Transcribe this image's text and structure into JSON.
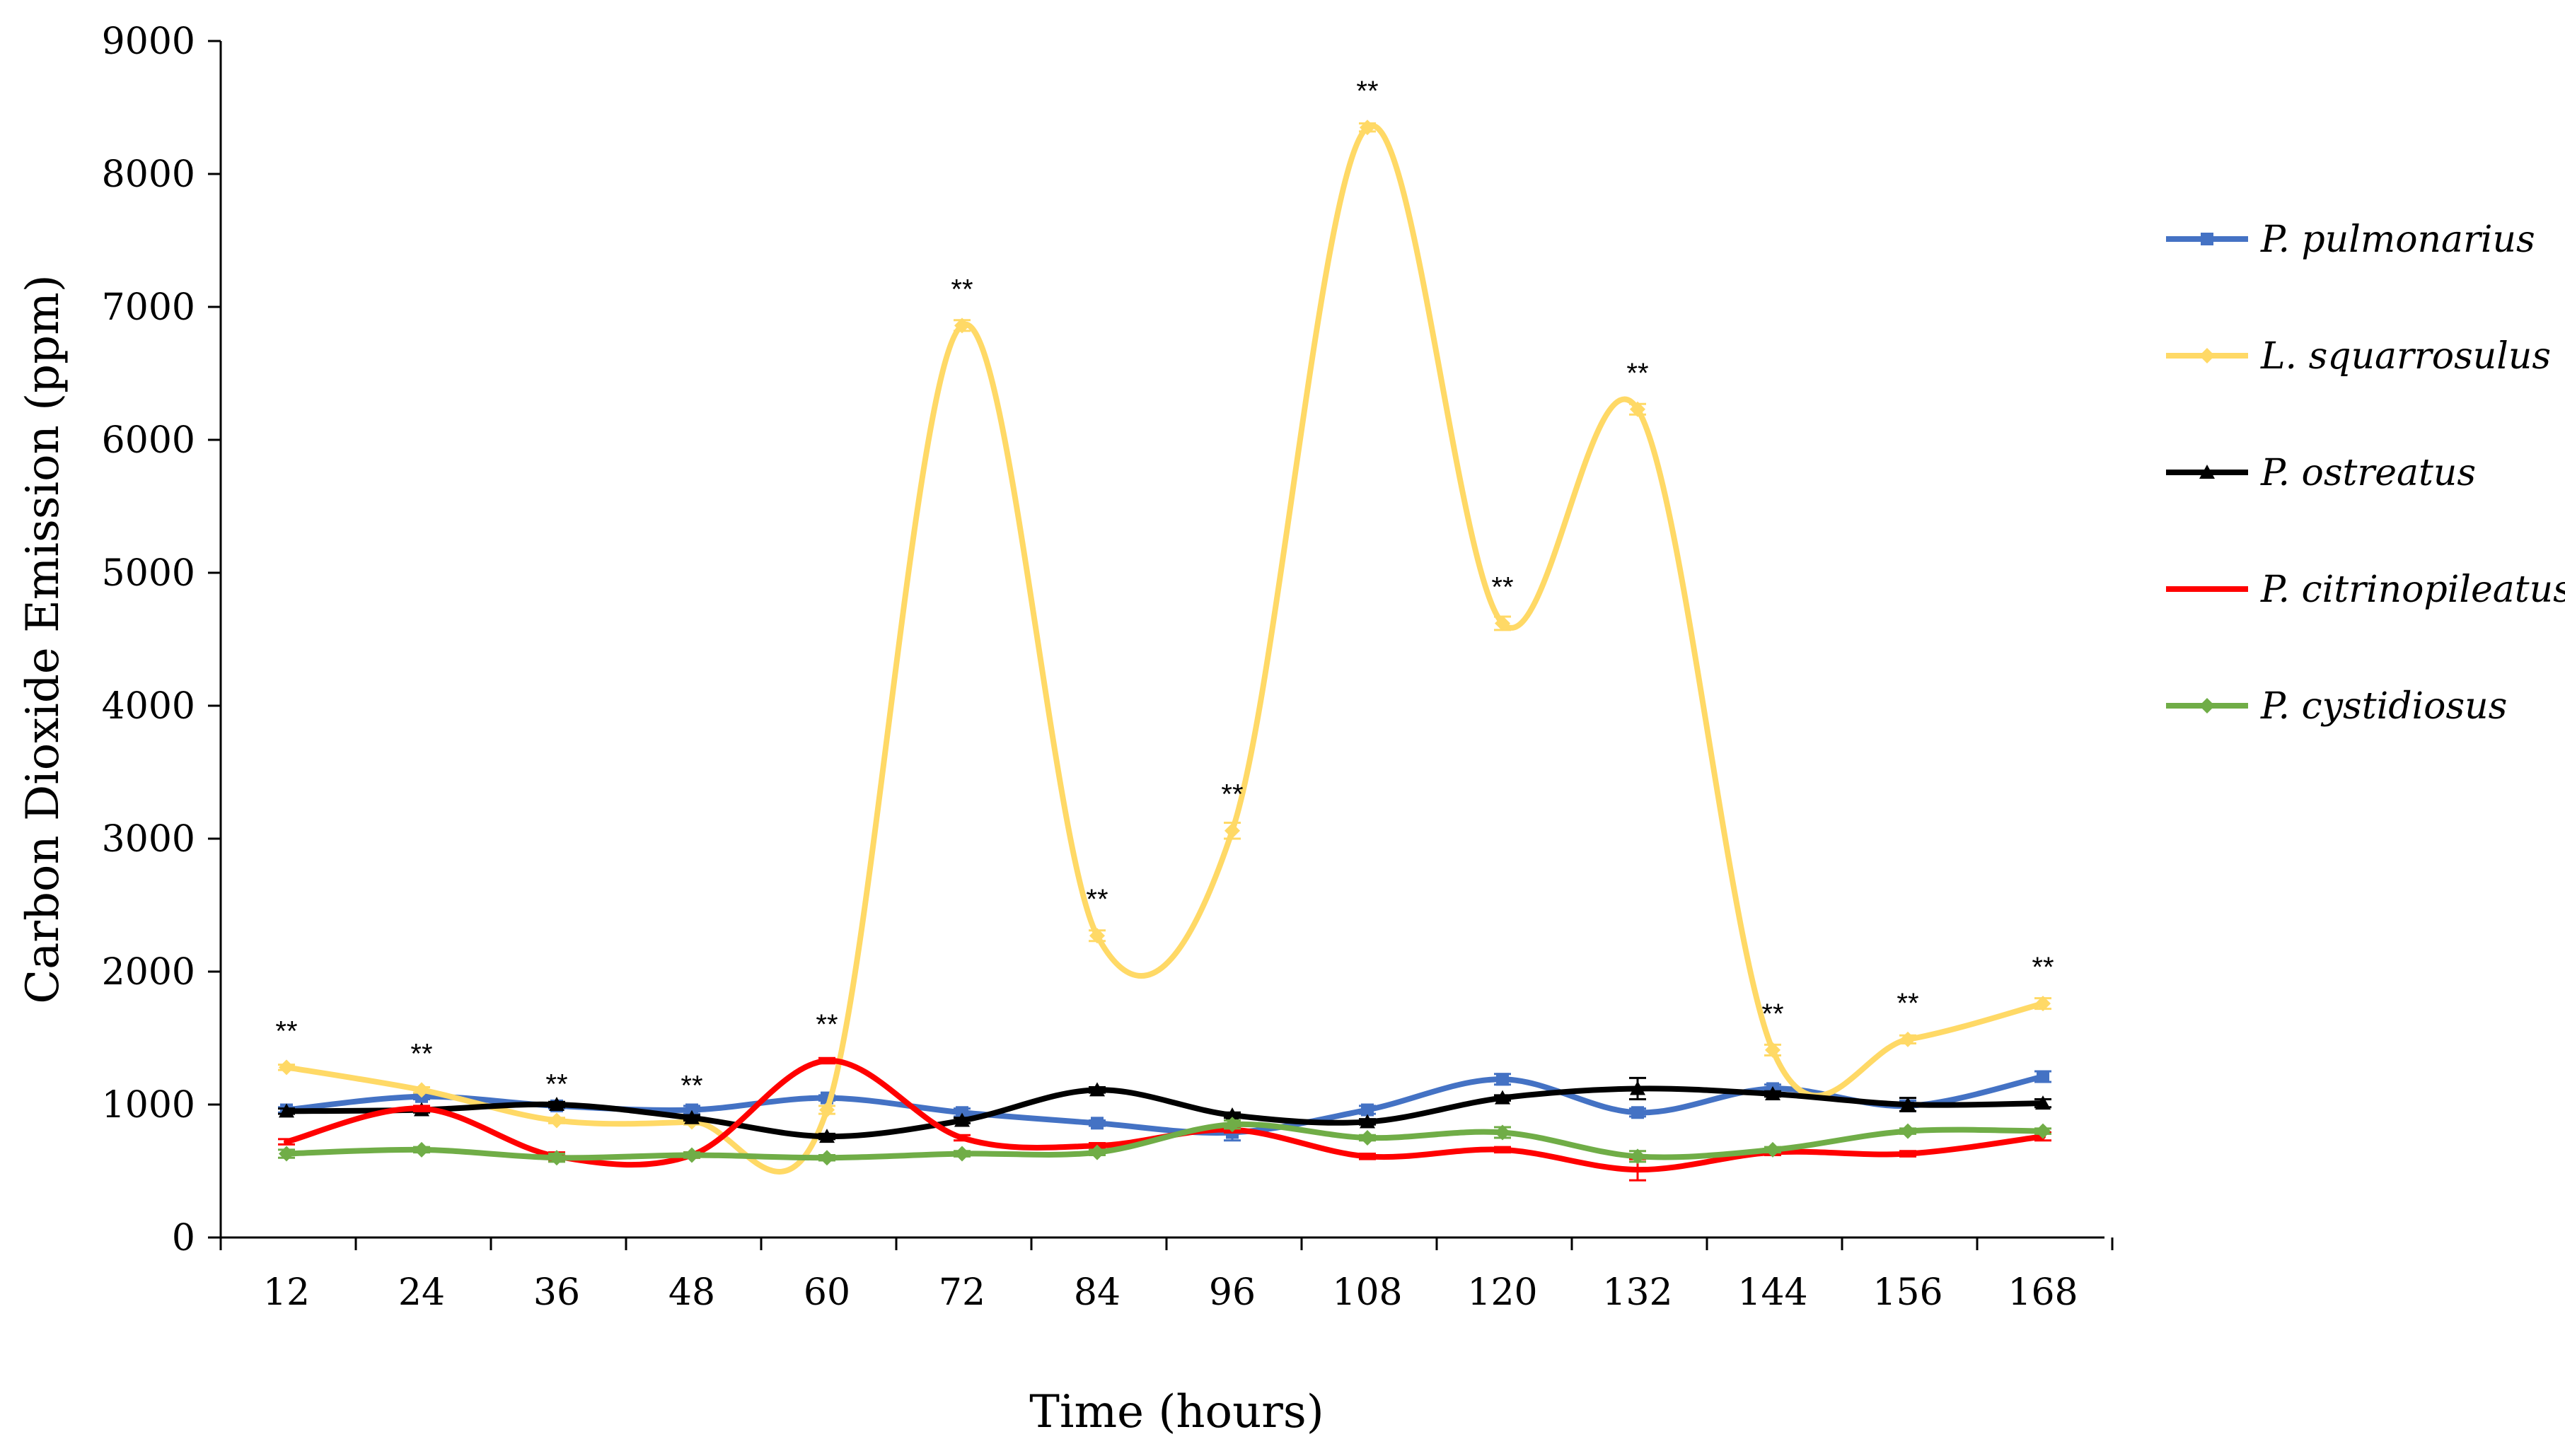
{
  "chart_data": {
    "type": "line",
    "title": "",
    "xlabel": "Time (hours)",
    "ylabel": "Carbon Dioxide Emission (ppm)",
    "x": [
      12,
      24,
      36,
      48,
      60,
      72,
      84,
      96,
      108,
      120,
      132,
      144,
      156,
      168
    ],
    "x_tick_labels": [
      "12",
      "24",
      "36",
      "48",
      "60",
      "72",
      "84",
      "96",
      "108",
      "120",
      "132",
      "144",
      "156",
      "168"
    ],
    "ylim": [
      0,
      9000
    ],
    "y_ticks": [
      0,
      1000,
      2000,
      3000,
      4000,
      5000,
      6000,
      7000,
      8000,
      9000
    ],
    "y_tick_labels": [
      "0",
      "1000",
      "2000",
      "3000",
      "4000",
      "5000",
      "6000",
      "7000",
      "8000",
      "9000"
    ],
    "grid": false,
    "legend_position": "right",
    "series": [
      {
        "name": "P. pulmonarius",
        "color": "#4472C4",
        "marker": "square",
        "values": [
          960,
          1060,
          990,
          960,
          1050,
          940,
          860,
          790,
          960,
          1190,
          940,
          1120,
          990,
          1210
        ],
        "errors": [
          20,
          20,
          20,
          30,
          20,
          30,
          20,
          60,
          30,
          40,
          30,
          30,
          40,
          40
        ]
      },
      {
        "name": "L. squarrosulus",
        "color": "#FFD966",
        "marker": "diamond",
        "values": [
          1280,
          1110,
          880,
          870,
          960,
          6860,
          2270,
          3060,
          8350,
          4620,
          6230,
          1410,
          1490,
          1760
        ],
        "errors": [
          20,
          20,
          20,
          20,
          30,
          40,
          40,
          60,
          30,
          50,
          40,
          40,
          30,
          40
        ]
      },
      {
        "name": "P. ostreatus",
        "color": "#000000",
        "marker": "triangle",
        "values": [
          950,
          960,
          1000,
          900,
          760,
          880,
          1110,
          920,
          870,
          1050,
          1120,
          1080,
          1000,
          1010
        ],
        "errors": [
          20,
          20,
          20,
          20,
          20,
          20,
          20,
          20,
          20,
          20,
          80,
          20,
          50,
          30
        ]
      },
      {
        "name": "P. citrinopileatus",
        "color": "#FF0000",
        "marker": "none",
        "values": [
          720,
          970,
          610,
          620,
          1330,
          750,
          690,
          810,
          610,
          660,
          510,
          640,
          630,
          760
        ],
        "errors": [
          20,
          20,
          30,
          20,
          20,
          20,
          20,
          20,
          20,
          20,
          80,
          20,
          20,
          30
        ]
      },
      {
        "name": "P. cystidiosus",
        "color": "#70AD47",
        "marker": "diamond",
        "values": [
          630,
          660,
          600,
          620,
          600,
          630,
          640,
          850,
          750,
          790,
          610,
          660,
          800,
          800
        ],
        "errors": [
          30,
          20,
          30,
          20,
          20,
          20,
          20,
          30,
          20,
          40,
          40,
          20,
          20,
          20
        ]
      }
    ],
    "annotations": [
      {
        "x": 12,
        "y": 1280,
        "text": "**"
      },
      {
        "x": 24,
        "y": 1110,
        "text": "**"
      },
      {
        "x": 36,
        "y": 880,
        "text": "**"
      },
      {
        "x": 48,
        "y": 870,
        "text": "**"
      },
      {
        "x": 60,
        "y": 1330,
        "text": "**"
      },
      {
        "x": 72,
        "y": 6860,
        "text": "**"
      },
      {
        "x": 84,
        "y": 2270,
        "text": "**"
      },
      {
        "x": 96,
        "y": 3060,
        "text": "**"
      },
      {
        "x": 108,
        "y": 8350,
        "text": "**"
      },
      {
        "x": 120,
        "y": 4620,
        "text": "**"
      },
      {
        "x": 132,
        "y": 6230,
        "text": "**"
      },
      {
        "x": 144,
        "y": 1410,
        "text": "**"
      },
      {
        "x": 156,
        "y": 1490,
        "text": "**"
      },
      {
        "x": 168,
        "y": 1760,
        "text": "**"
      }
    ]
  }
}
